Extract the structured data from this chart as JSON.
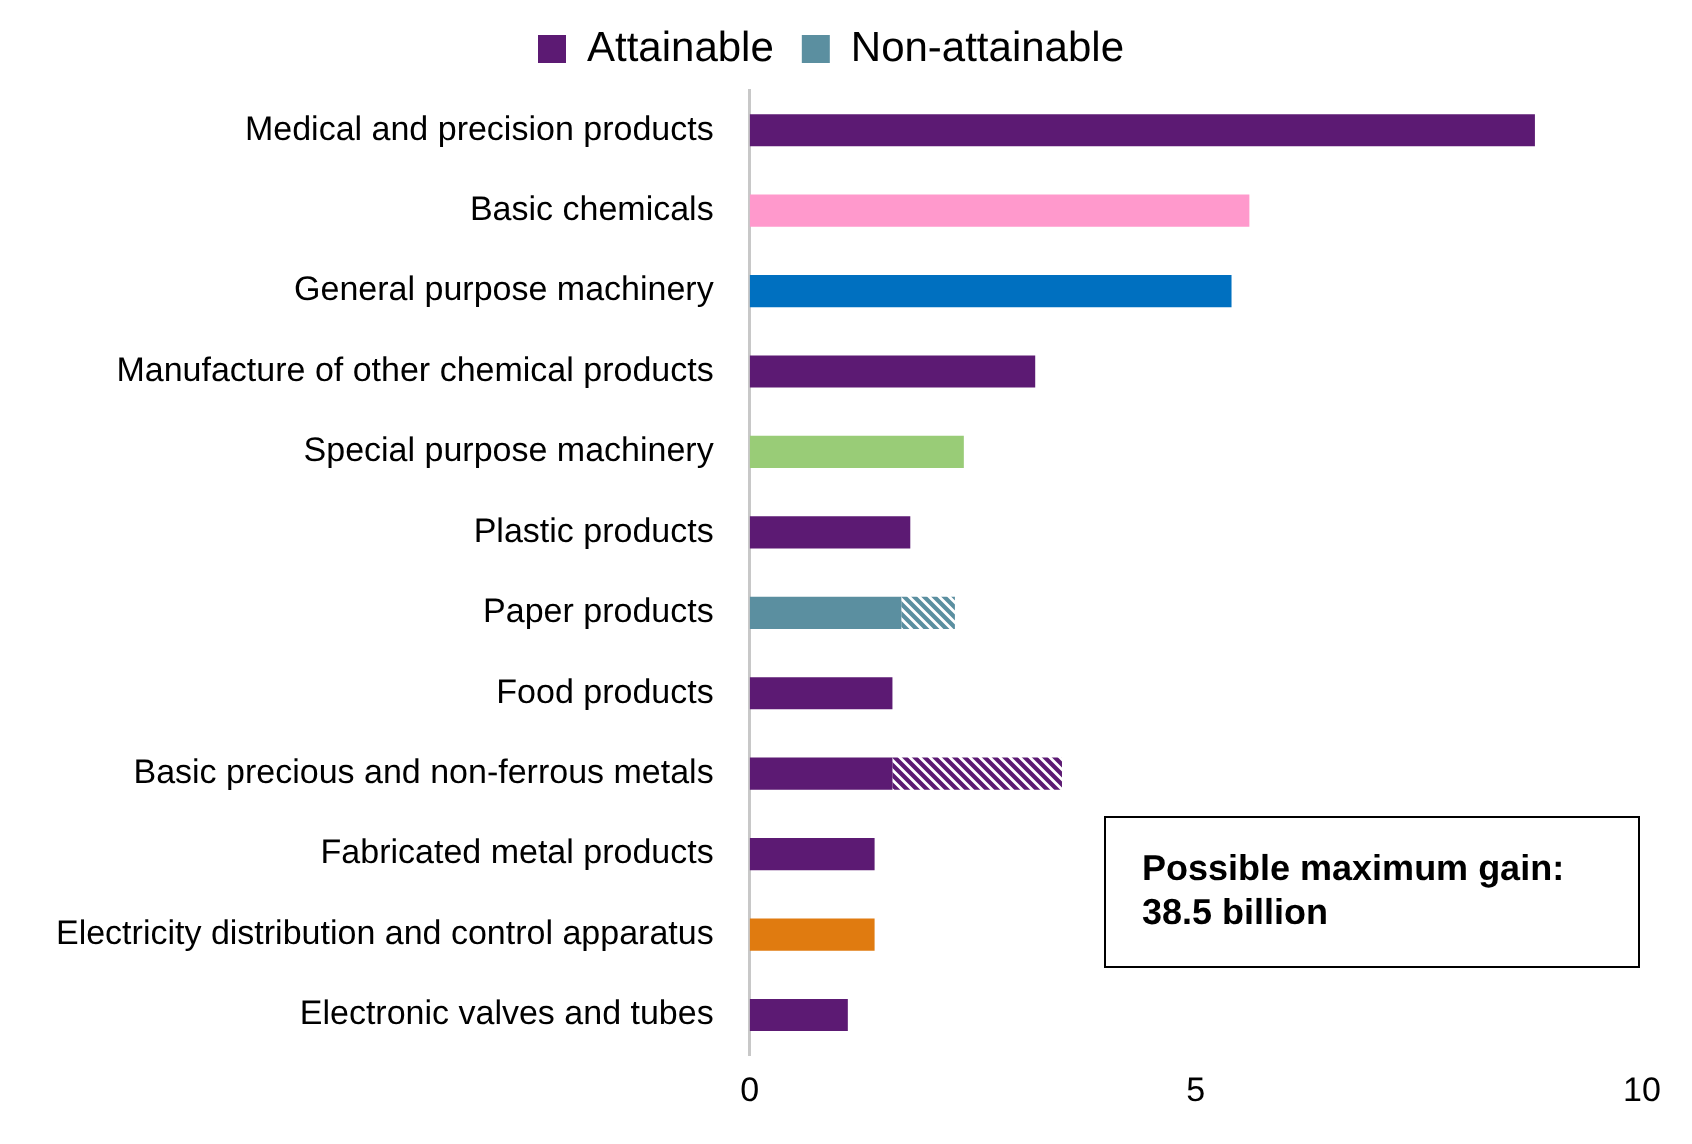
{
  "chart_data": {
    "type": "bar",
    "orientation": "horizontal",
    "stacked": true,
    "categories": [
      "Medical and precision products",
      "Basic chemicals",
      "General purpose machinery",
      "Manufacture of other chemical products",
      "Special purpose machinery",
      "Plastic products",
      "Paper products",
      "Food products",
      "Basic precious and non-ferrous metals",
      "Fabricated metal products",
      "Electricity distribution and control apparatus",
      "Electronic valves and tubes"
    ],
    "series": [
      {
        "name": "Attainable",
        "colors": [
          "#5c1a73",
          "#ff99cc",
          "#0070c0",
          "#5c1a73",
          "#99cc77",
          "#5c1a73",
          "#5b8fa0",
          "#5c1a73",
          "#5c1a73",
          "#5c1a73",
          "#e07b10",
          "#5c1a73"
        ],
        "values": [
          8.8,
          5.6,
          5.4,
          3.2,
          2.4,
          1.8,
          1.7,
          1.6,
          1.6,
          1.4,
          1.4,
          1.1
        ]
      },
      {
        "name": "Non-attainable",
        "colors": [
          "#5c1a73",
          "#ff99cc",
          "#0070c0",
          "#5c1a73",
          "#99cc77",
          "#5c1a73",
          "#5b8fa0",
          "#5c1a73",
          "#5c1a73",
          "#5c1a73",
          "#e07b10",
          "#5c1a73"
        ],
        "values": [
          null,
          null,
          null,
          null,
          null,
          null,
          0.6,
          null,
          1.9,
          null,
          null,
          null
        ]
      }
    ],
    "xlim": [
      0,
      10
    ],
    "xticks": [
      0,
      5,
      10
    ],
    "grid": false,
    "legend": "top",
    "annotations": [
      "Possible maximum gain: 38.5 billion"
    ]
  }
}
